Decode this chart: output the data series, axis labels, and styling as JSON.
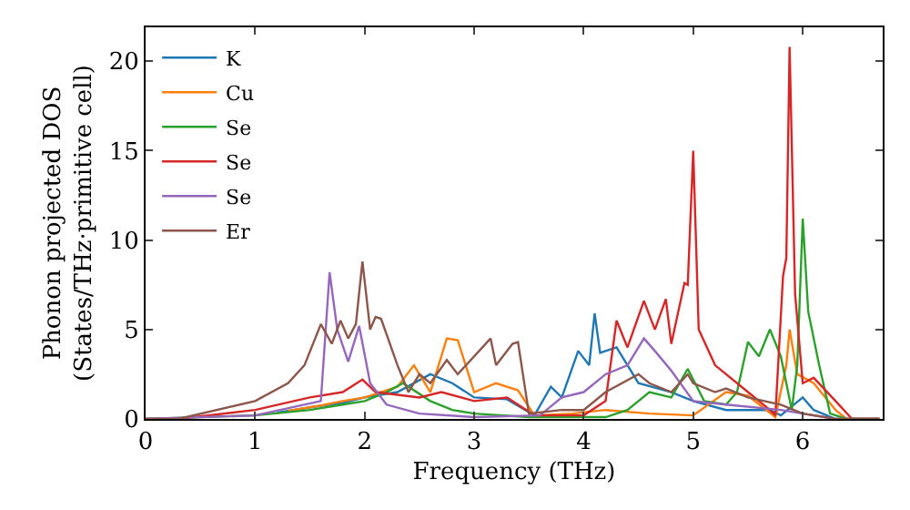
{
  "chart_data": {
    "type": "line",
    "xlabel": "Frequency (THz)",
    "ylabel": "Phonon projected DOS\n(States/THz·primitive cell)",
    "xlim": [
      0,
      6.73
    ],
    "ylim": [
      0,
      21.9
    ],
    "xticks": [
      0,
      1,
      2,
      3,
      4,
      5,
      6
    ],
    "yticks": [
      0,
      5,
      10,
      15,
      20
    ],
    "grid": false,
    "legend": "top left",
    "marker": "none",
    "line_style": "solid",
    "series": [
      {
        "name": "K",
        "color": "#1f77b4",
        "x": [
          1.2,
          1.5,
          1.8,
          2.0,
          2.3,
          2.6,
          2.8,
          3.0,
          3.3,
          3.55,
          3.7,
          3.8,
          3.95,
          4.05,
          4.1,
          4.15,
          4.3,
          4.5,
          4.8,
          5.0,
          5.3,
          5.7,
          5.8,
          6.0,
          6.1,
          6.3,
          6.7
        ],
        "values": [
          0.35,
          0.65,
          0.9,
          1.2,
          1.5,
          2.5,
          2,
          1.2,
          1.1,
          0.2,
          1.8,
          1.2,
          3.8,
          3,
          5.9,
          3.7,
          4,
          2,
          1.5,
          1.0,
          0.5,
          0.5,
          0.2,
          1.2,
          0.5,
          0,
          0
        ]
      },
      {
        "name": "Cu",
        "color": "#ff7f0e",
        "x": [
          1.3,
          1.6,
          1.8,
          2.0,
          2.3,
          2.45,
          2.6,
          2.75,
          2.85,
          3.0,
          3.2,
          3.4,
          3.55,
          3.9,
          4.2,
          4.6,
          5.0,
          5.3,
          5.5,
          5.75,
          5.85,
          5.88,
          5.95,
          6.1,
          6.3,
          6.4,
          6.7
        ],
        "values": [
          0.45,
          0.75,
          1.0,
          1.2,
          1.8,
          3,
          1.5,
          4.5,
          4.4,
          1.5,
          2,
          1.6,
          0.2,
          0.3,
          0.5,
          0.3,
          0.2,
          1.5,
          1.3,
          0.1,
          3,
          5,
          2.5,
          2,
          0.5,
          0,
          0
        ]
      },
      {
        "name": "Se",
        "color": "#2ca02c",
        "x": [
          0,
          1.0,
          1.5,
          1.8,
          2.0,
          2.2,
          2.35,
          2.6,
          2.8,
          3.0,
          3.5,
          4.2,
          4.4,
          4.6,
          4.8,
          4.95,
          5.1,
          5.3,
          5.4,
          5.5,
          5.6,
          5.7,
          5.8,
          5.9,
          5.95,
          6.0,
          6.05,
          6.15,
          6.25,
          6.4,
          6.7
        ],
        "values": [
          0,
          0.2,
          0.5,
          0.8,
          1,
          1.5,
          2,
          1,
          0.5,
          0.3,
          0.1,
          0.1,
          0.5,
          1.5,
          1.2,
          2.8,
          1,
          0.8,
          1.5,
          4.3,
          3.5,
          5,
          3.5,
          0.5,
          3,
          11.2,
          6,
          3,
          0.3,
          0,
          0
        ]
      },
      {
        "name": "Se",
        "color": "#d62728",
        "x": [
          0,
          0.3,
          1.0,
          1.5,
          1.8,
          1.98,
          2.1,
          2.5,
          2.7,
          3.0,
          3.3,
          3.55,
          4.0,
          4.2,
          4.3,
          4.4,
          4.55,
          4.65,
          4.75,
          4.8,
          4.92,
          4.95,
          5.0,
          5.05,
          5.2,
          5.5,
          5.7,
          5.75,
          5.82,
          5.85,
          5.88,
          5.93,
          6.0,
          6.1,
          6.3,
          6.45,
          6.7
        ],
        "values": [
          0,
          0,
          0.5,
          1.2,
          1.5,
          2.2,
          1.5,
          1.2,
          1.5,
          1,
          1.2,
          0.2,
          0.2,
          1,
          5.5,
          4,
          6.6,
          5,
          6.7,
          4.2,
          7.6,
          7.5,
          15,
          5,
          3,
          1.5,
          0.5,
          0.2,
          8,
          9,
          20.8,
          7,
          2,
          2.3,
          1,
          0,
          0
        ]
      },
      {
        "name": "Se",
        "color": "#9467bd",
        "x": [
          0,
          1.0,
          1.6,
          1.68,
          1.75,
          1.85,
          1.95,
          2.05,
          2.2,
          2.5,
          3.0,
          3.6,
          3.8,
          4.0,
          4.2,
          4.4,
          4.55,
          4.65,
          4.8,
          5.0,
          5.3,
          5.8,
          6.0,
          6.3,
          6.7
        ],
        "values": [
          0,
          0.2,
          1.0,
          8.2,
          5,
          3.2,
          5.2,
          2.0,
          0.8,
          0.3,
          0.1,
          0.2,
          1.2,
          1.5,
          2.5,
          3,
          4.5,
          3.8,
          2.7,
          1.0,
          0.8,
          0.5,
          0.3,
          0,
          0
        ]
      },
      {
        "name": "Er",
        "color": "#8c564b",
        "x": [
          0,
          0.3,
          1.0,
          1.3,
          1.45,
          1.6,
          1.7,
          1.78,
          1.85,
          1.92,
          1.98,
          2.05,
          2.1,
          2.15,
          2.3,
          2.4,
          2.5,
          2.6,
          2.75,
          2.85,
          3.15,
          3.2,
          3.35,
          3.4,
          3.5,
          3.8,
          4.0,
          4.2,
          4.5,
          4.6,
          4.8,
          4.95,
          5.0,
          5.2,
          5.3,
          5.5,
          5.8,
          6.0,
          6.3,
          6.7
        ],
        "values": [
          0,
          0,
          1.0,
          2,
          3,
          5.3,
          4.2,
          5.5,
          4.5,
          5.3,
          8.8,
          5,
          5.7,
          5.6,
          3,
          1.5,
          2.5,
          2.0,
          3.3,
          2.5,
          4.5,
          3.0,
          4.2,
          4.3,
          0.3,
          0.5,
          0.5,
          1.5,
          2.5,
          2,
          1.5,
          2.5,
          2.0,
          1.5,
          1.7,
          1.2,
          0.8,
          0.3,
          0,
          0
        ]
      }
    ]
  }
}
